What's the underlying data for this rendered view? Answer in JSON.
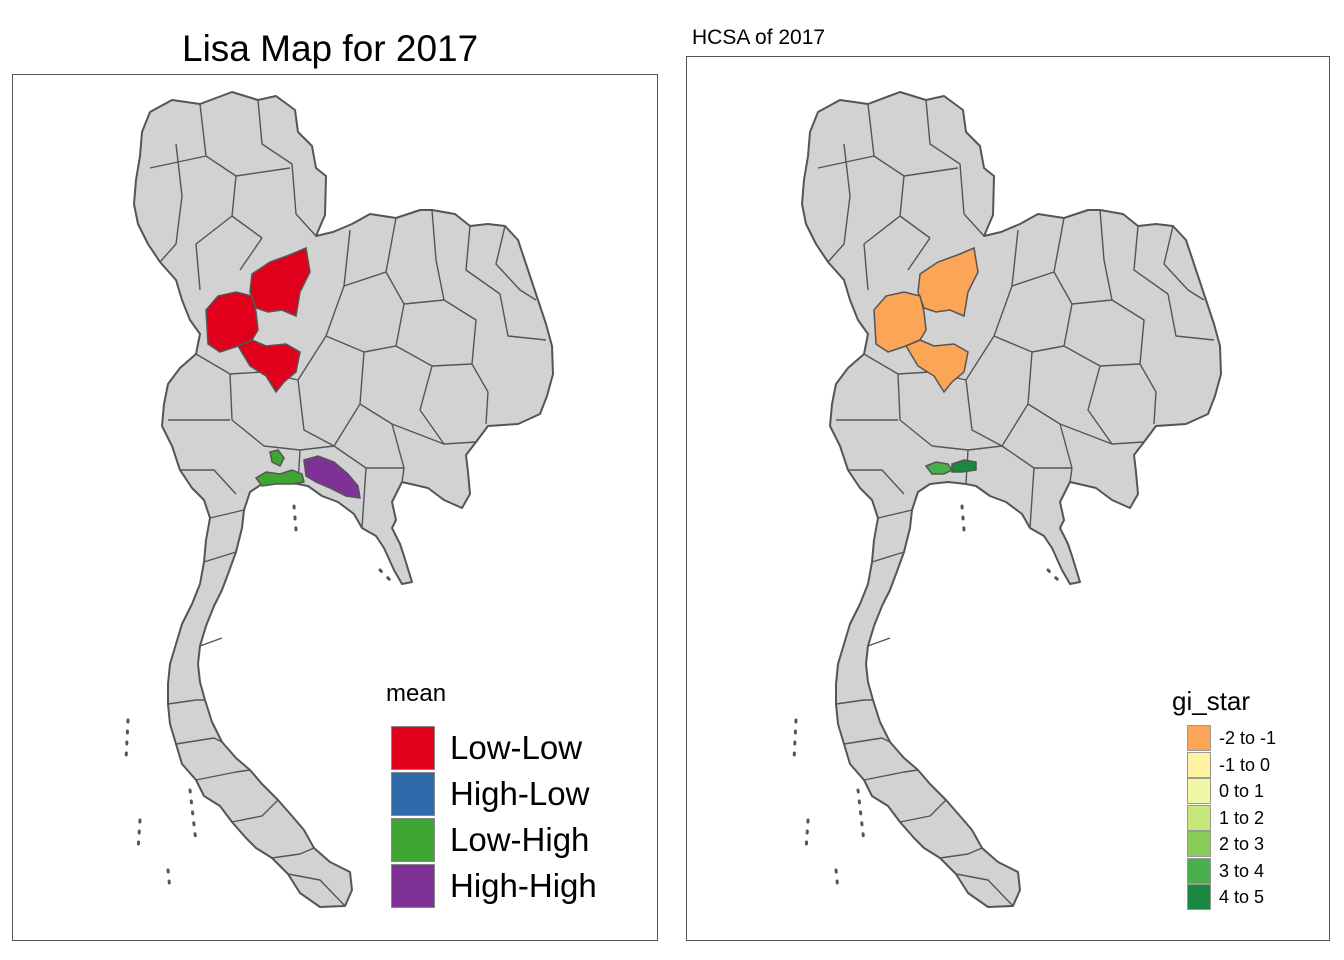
{
  "lisa_map": {
    "title": "Lisa Map for 2017",
    "legend": {
      "title": "mean",
      "items": [
        {
          "label": "Low-Low",
          "color": "#e0001b"
        },
        {
          "label": "High-Low",
          "color": "#2f6bab"
        },
        {
          "label": "Low-High",
          "color": "#3fa535"
        },
        {
          "label": "High-High",
          "color": "#7f3295"
        }
      ]
    },
    "base_color": "#d2d2d2",
    "border_color": "#555555"
  },
  "hcsa_map": {
    "title": "HCSA of 2017",
    "legend": {
      "title": "gi_star",
      "items": [
        {
          "label": "-2 to -1",
          "color": "#fba557"
        },
        {
          "label": "-1 to 0",
          "color": "#fff3a2"
        },
        {
          "label": "0 to 1",
          "color": "#eef7a4"
        },
        {
          "label": "1 to 2",
          "color": "#c6e77a"
        },
        {
          "label": "2 to 3",
          "color": "#8acc5a"
        },
        {
          "label": "3 to 4",
          "color": "#4aae4c"
        },
        {
          "label": "4 to 5",
          "color": "#1a8840"
        }
      ]
    },
    "base_color": "#d2d2d2",
    "border_color": "#555555"
  }
}
